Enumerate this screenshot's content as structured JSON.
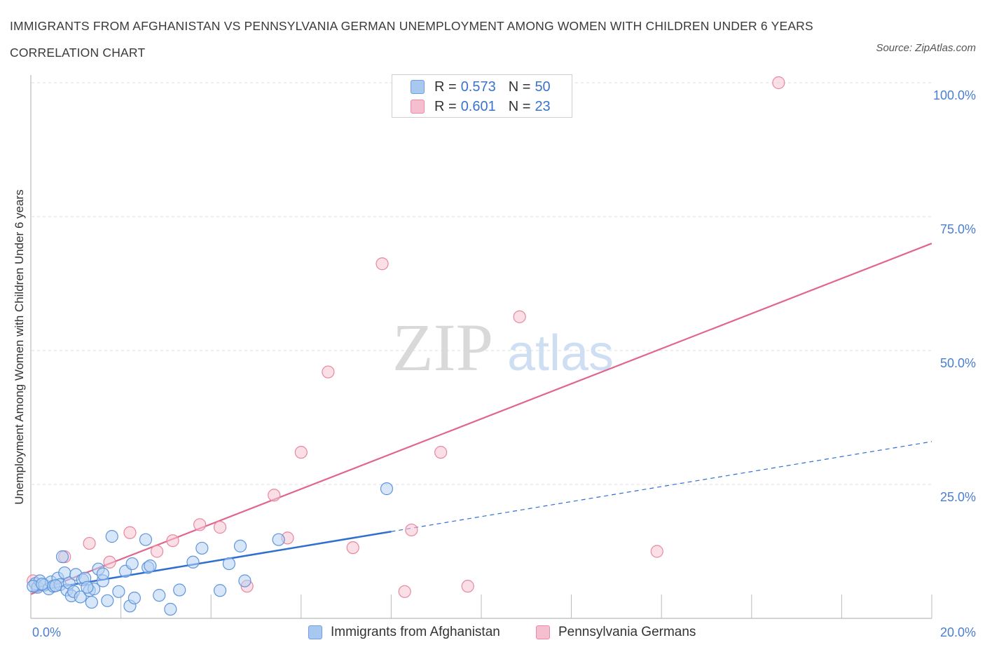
{
  "title": "IMMIGRANTS FROM AFGHANISTAN VS PENNSYLVANIA GERMAN UNEMPLOYMENT AMONG WOMEN WITH CHILDREN UNDER 6 YEARS CORRELATION CHART",
  "source": "Source: ZipAtlas.com",
  "watermark": {
    "zip": "ZIP",
    "atlas": "atlas"
  },
  "legend_top": [
    {
      "r_label": "R =",
      "r_value": "0.573",
      "n_label": "N =",
      "n_value": "50",
      "color": "#a9c8f0",
      "border": "#6e9fe0"
    },
    {
      "r_label": "R =",
      "r_value": "0.601",
      "n_label": "N =",
      "n_value": "23",
      "color": "#f6bfd0",
      "border": "#e98aaa"
    }
  ],
  "colors": {
    "blue_fill": "#b7d1f3",
    "blue_stroke": "#5f95db",
    "blue_line": "#2f6fd0",
    "pink_fill": "#f7c4d3",
    "pink_stroke": "#e7879f",
    "pink_line": "#e0668e",
    "grid": "#dedede",
    "axis": "#bbbbbb"
  },
  "chart_data": {
    "type": "scatter",
    "title": "IMMIGRANTS FROM AFGHANISTAN VS PENNSYLVANIA GERMAN UNEMPLOYMENT AMONG WOMEN WITH CHILDREN UNDER 6 YEARS CORRELATION CHART",
    "xlabel": "",
    "ylabel": "Unemployment Among Women with Children Under 6 years",
    "xlim": [
      0,
      20
    ],
    "ylim": [
      0,
      100
    ],
    "x_tick_labels": [
      "0.0%",
      "20.0%"
    ],
    "y_tick_labels": [
      "25.0%",
      "50.0%",
      "75.0%",
      "100.0%"
    ],
    "y_ticks": [
      25,
      50,
      75,
      100
    ],
    "grid": true,
    "legend_position": "bottom",
    "series": [
      {
        "name": "Immigrants from Afghanistan",
        "points": [
          [
            0.1,
            6.5
          ],
          [
            0.15,
            5.8
          ],
          [
            0.2,
            7.0
          ],
          [
            0.3,
            6.2
          ],
          [
            0.4,
            5.5
          ],
          [
            0.45,
            6.8
          ],
          [
            0.5,
            6.0
          ],
          [
            0.6,
            7.5
          ],
          [
            0.65,
            6.3
          ],
          [
            0.7,
            11.5
          ],
          [
            0.75,
            8.5
          ],
          [
            0.8,
            5.3
          ],
          [
            0.85,
            6.6
          ],
          [
            0.9,
            4.2
          ],
          [
            0.95,
            5.0
          ],
          [
            1.0,
            8.2
          ],
          [
            1.1,
            4.0
          ],
          [
            1.15,
            7.2
          ],
          [
            1.2,
            7.5
          ],
          [
            1.3,
            5.2
          ],
          [
            1.35,
            3.0
          ],
          [
            1.4,
            5.5
          ],
          [
            1.5,
            9.2
          ],
          [
            1.6,
            7.0
          ],
          [
            1.6,
            8.3
          ],
          [
            1.7,
            3.3
          ],
          [
            1.8,
            15.3
          ],
          [
            1.95,
            5.0
          ],
          [
            2.1,
            8.8
          ],
          [
            2.2,
            2.3
          ],
          [
            2.25,
            10.2
          ],
          [
            2.3,
            3.8
          ],
          [
            2.55,
            14.7
          ],
          [
            2.6,
            9.5
          ],
          [
            2.65,
            9.8
          ],
          [
            2.85,
            4.3
          ],
          [
            3.1,
            1.7
          ],
          [
            3.3,
            5.3
          ],
          [
            3.6,
            10.5
          ],
          [
            3.8,
            13.1
          ],
          [
            4.2,
            5.2
          ],
          [
            4.4,
            10.2
          ],
          [
            4.65,
            13.5
          ],
          [
            4.75,
            7.0
          ],
          [
            5.5,
            14.7
          ],
          [
            7.9,
            24.2
          ],
          [
            0.05,
            6.0
          ],
          [
            0.25,
            6.4
          ],
          [
            1.25,
            5.8
          ],
          [
            0.55,
            6.1
          ]
        ],
        "trend": {
          "x": [
            0,
            8.0
          ],
          "y": [
            5.0,
            16.2
          ]
        },
        "trend_dashed": {
          "x": [
            8.0,
            20.0
          ],
          "y": [
            16.2,
            33.0
          ]
        }
      },
      {
        "name": "Pennsylvania Germans",
        "points": [
          [
            0.05,
            7.0
          ],
          [
            0.75,
            11.5
          ],
          [
            1.3,
            14.0
          ],
          [
            1.75,
            10.5
          ],
          [
            2.2,
            16.0
          ],
          [
            2.8,
            12.5
          ],
          [
            3.15,
            14.5
          ],
          [
            3.75,
            17.5
          ],
          [
            4.2,
            17.0
          ],
          [
            4.8,
            6.0
          ],
          [
            5.4,
            23.0
          ],
          [
            5.7,
            15.0
          ],
          [
            6.0,
            31.0
          ],
          [
            6.6,
            46.0
          ],
          [
            7.15,
            13.2
          ],
          [
            7.8,
            66.2
          ],
          [
            8.3,
            5.0
          ],
          [
            8.45,
            16.5
          ],
          [
            9.1,
            31.0
          ],
          [
            9.7,
            6.0
          ],
          [
            10.85,
            56.3
          ],
          [
            13.9,
            12.5
          ],
          [
            16.6,
            100.0
          ]
        ],
        "trend": {
          "x": [
            0,
            20.0
          ],
          "y": [
            4.5,
            70.0
          ]
        }
      }
    ]
  }
}
